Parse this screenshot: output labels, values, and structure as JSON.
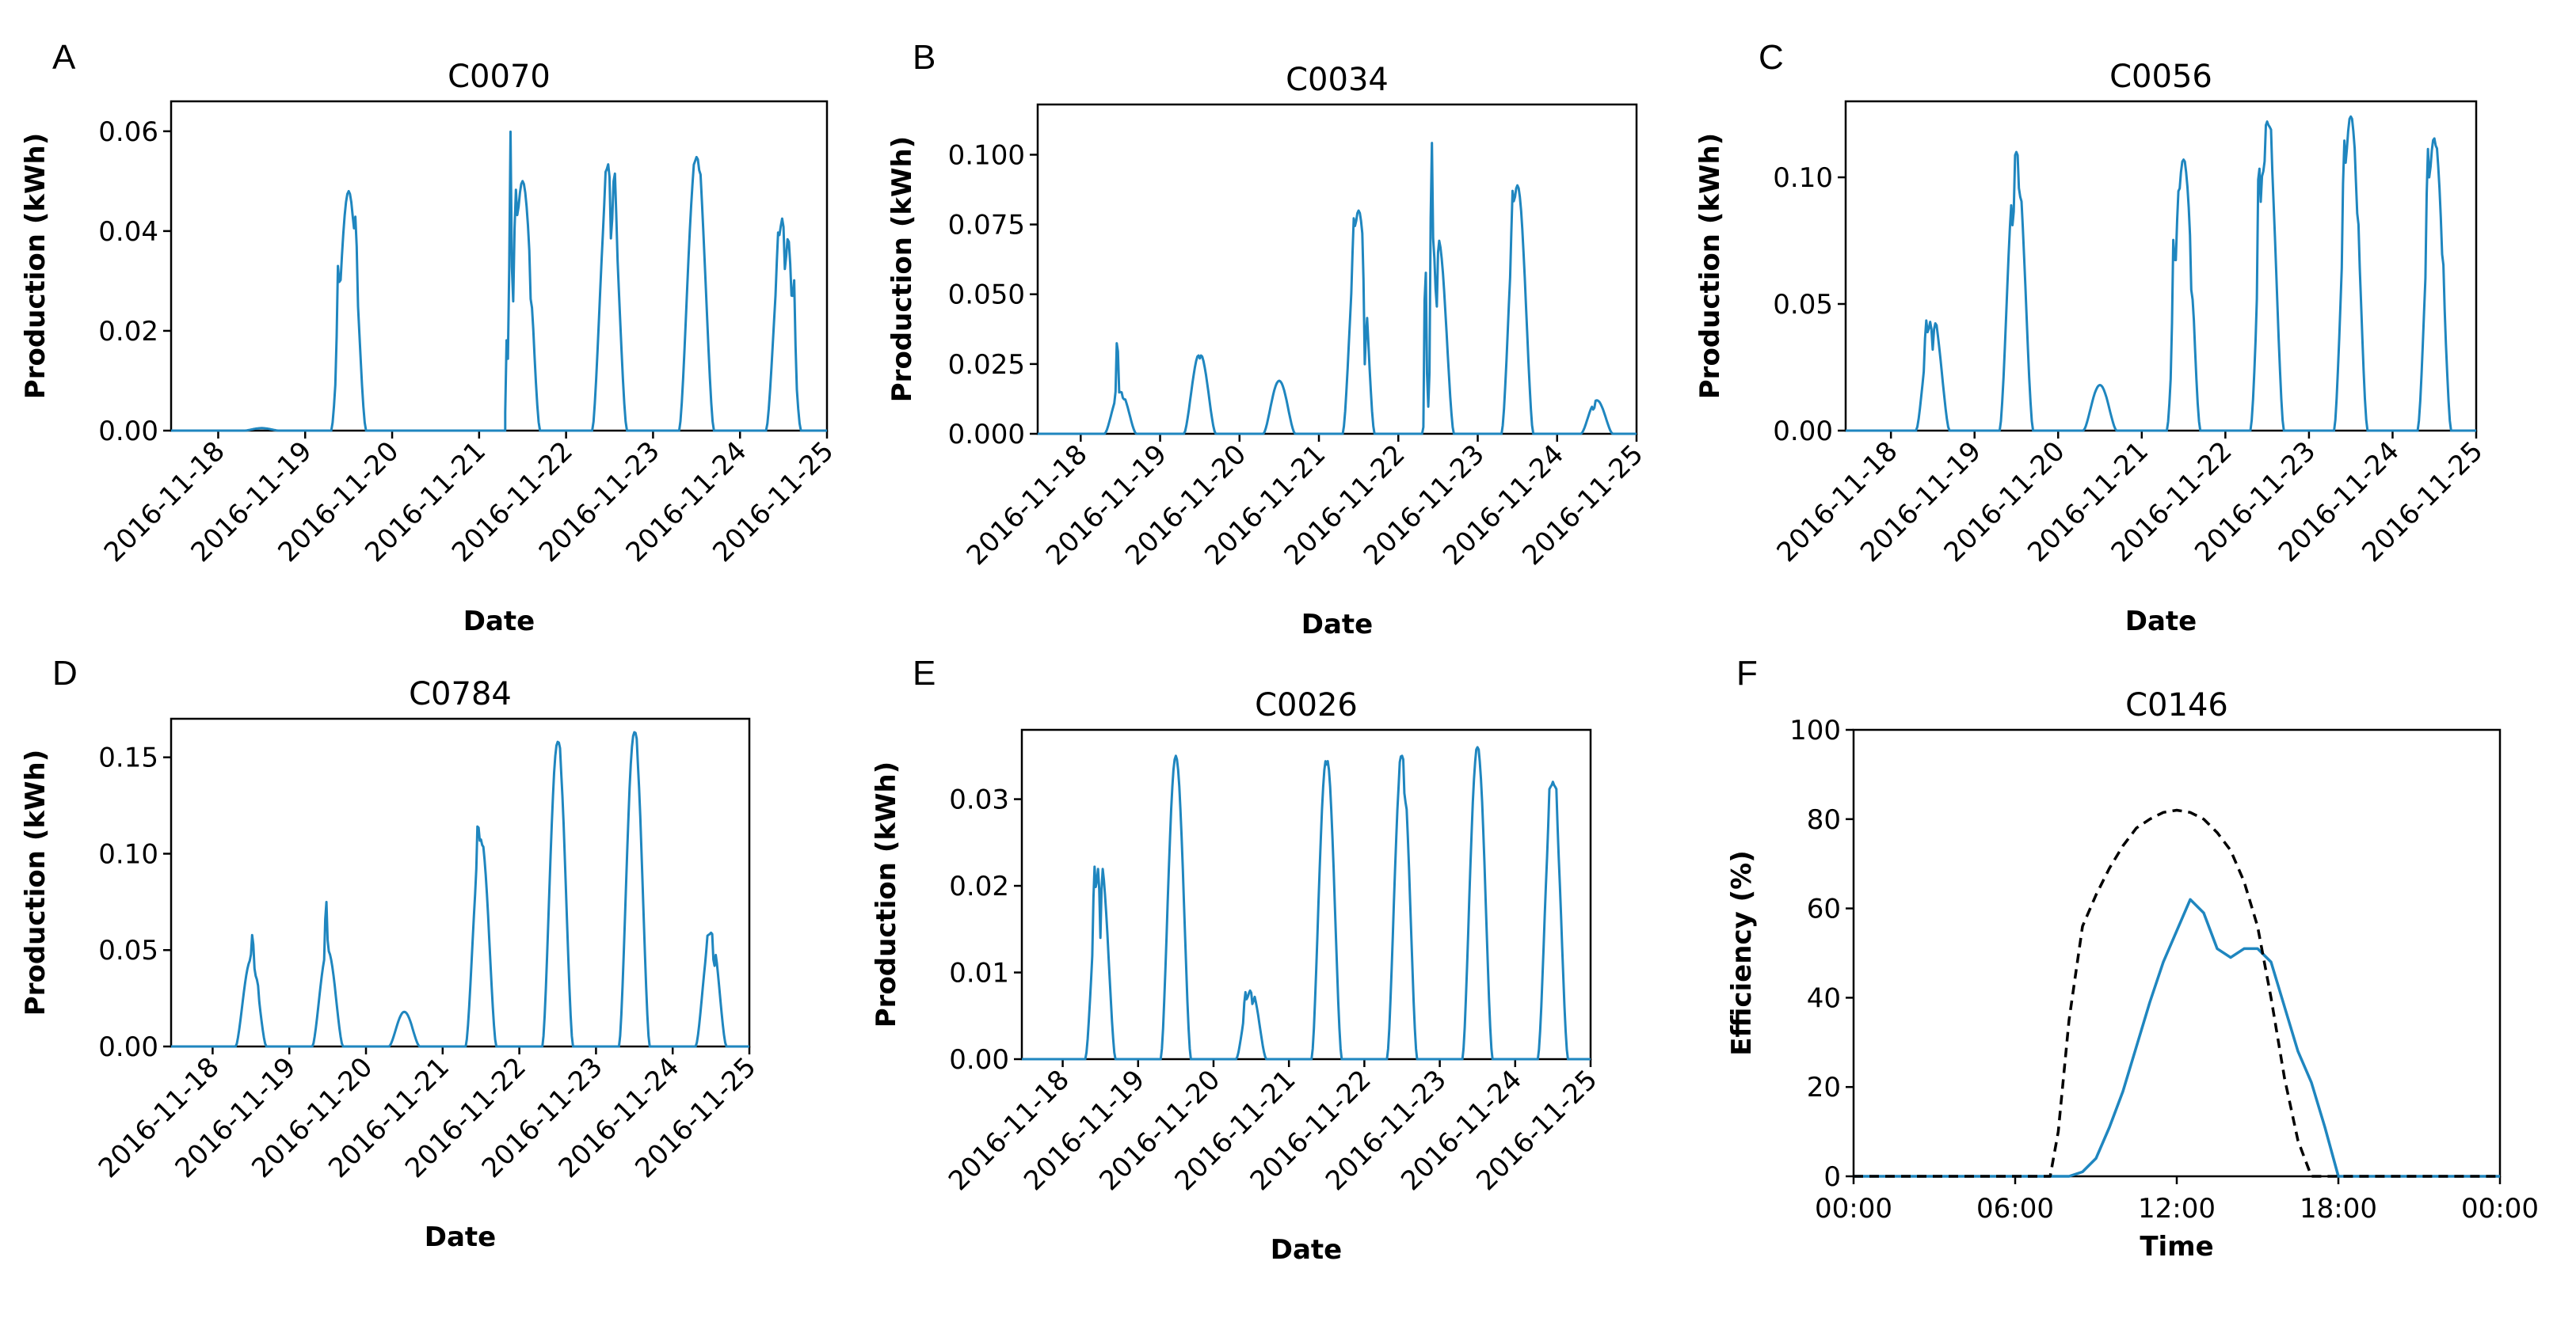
{
  "colors": {
    "line": "#1f86bf",
    "reference": "#000000"
  },
  "chart_data": [
    {
      "id": "A",
      "type": "line",
      "title": "C0070",
      "xlabel": "Date",
      "ylabel": "Production (kWh)",
      "xticks": [
        "2016-11-18",
        "2016-11-19",
        "2016-11-20",
        "2016-11-21",
        "2016-11-22",
        "2016-11-23",
        "2016-11-24",
        "2016-11-25"
      ],
      "xlim": [
        "2016-11-17T11:00",
        "2016-11-25T00:00"
      ],
      "yticks": [
        "0.00",
        "0.02",
        "0.04",
        "0.06"
      ],
      "ylim": [
        0,
        0.066
      ],
      "days": [
        {
          "date": "2016-11-18",
          "peak": 0.0005,
          "spikes": []
        },
        {
          "date": "2016-11-19",
          "peak": 0.048,
          "spikes": [
            [
              0.2,
              0.035
            ],
            [
              0.7,
              0.044
            ]
          ]
        },
        {
          "date": "2016-11-20",
          "peak": 0.0,
          "spikes": []
        },
        {
          "date": "2016-11-21",
          "peak": 0.05,
          "spikes": [
            [
              0.05,
              0.022
            ],
            [
              0.15,
              0.063
            ],
            [
              0.3,
              0.05
            ],
            [
              0.75,
              0.024
            ]
          ]
        },
        {
          "date": "2016-11-22",
          "peak": 0.054,
          "spikes": [
            [
              0.4,
              0.053
            ],
            [
              0.55,
              0.035
            ],
            [
              0.65,
              0.052
            ]
          ]
        },
        {
          "date": "2016-11-23",
          "peak": 0.055,
          "spikes": [
            [
              0.45,
              0.054
            ],
            [
              0.6,
              0.052
            ]
          ]
        },
        {
          "date": "2016-11-24",
          "peak": 0.043,
          "spikes": [
            [
              0.35,
              0.04
            ],
            [
              0.55,
              0.03
            ],
            [
              0.65,
              0.038
            ],
            [
              0.8,
              0.032
            ]
          ]
        }
      ]
    },
    {
      "id": "B",
      "type": "line",
      "title": "C0034",
      "xlabel": "Date",
      "ylabel": "Production (kWh)",
      "xticks": [
        "2016-11-18",
        "2016-11-19",
        "2016-11-20",
        "2016-11-21",
        "2016-11-22",
        "2016-11-23",
        "2016-11-24",
        "2016-11-25"
      ],
      "xlim": [
        "2016-11-17T11:00",
        "2016-11-25T00:00"
      ],
      "yticks": [
        "0.000",
        "0.025",
        "0.050",
        "0.075",
        "0.100"
      ],
      "ylim": [
        0,
        0.118
      ],
      "days": [
        {
          "date": "2016-11-18",
          "peak": 0.015,
          "spikes": [
            [
              0.4,
              0.039
            ],
            [
              0.6,
              0.012
            ]
          ]
        },
        {
          "date": "2016-11-19",
          "peak": 0.029,
          "spikes": [
            [
              0.5,
              0.027
            ]
          ]
        },
        {
          "date": "2016-11-20",
          "peak": 0.019,
          "spikes": []
        },
        {
          "date": "2016-11-21",
          "peak": 0.08,
          "spikes": [
            [
              0.35,
              0.078
            ],
            [
              0.7,
              0.02
            ]
          ]
        },
        {
          "date": "2016-11-22",
          "peak": 0.07,
          "spikes": [
            [
              0.1,
              0.073
            ],
            [
              0.2,
              0.007
            ],
            [
              0.3,
              0.112
            ],
            [
              0.45,
              0.04
            ]
          ]
        },
        {
          "date": "2016-11-23",
          "peak": 0.089,
          "spikes": [
            [
              0.35,
              0.088
            ]
          ]
        },
        {
          "date": "2016-11-24",
          "peak": 0.012,
          "spikes": [
            [
              0.4,
              0.008
            ]
          ]
        }
      ]
    },
    {
      "id": "C",
      "type": "line",
      "title": "C0056",
      "xlabel": "Date",
      "ylabel": "Production (kWh)",
      "xticks": [
        "2016-11-18",
        "2016-11-19",
        "2016-11-20",
        "2016-11-21",
        "2016-11-22",
        "2016-11-23",
        "2016-11-24",
        "2016-11-25"
      ],
      "xlim": [
        "2016-11-17T11:00",
        "2016-11-25T00:00"
      ],
      "yticks": [
        "0.00",
        "0.05",
        "0.10"
      ],
      "ylim": [
        0,
        0.13
      ],
      "days": [
        {
          "date": "2016-11-18",
          "peak": 0.045,
          "spikes": [
            [
              0.3,
              0.045
            ],
            [
              0.5,
              0.032
            ],
            [
              0.6,
              0.042
            ]
          ]
        },
        {
          "date": "2016-11-19",
          "peak": 0.11,
          "spikes": [
            [
              0.4,
              0.075
            ],
            [
              0.6,
              0.09
            ]
          ]
        },
        {
          "date": "2016-11-20",
          "peak": 0.018,
          "spikes": []
        },
        {
          "date": "2016-11-21",
          "peak": 0.107,
          "spikes": [
            [
              0.2,
              0.08
            ],
            [
              0.35,
              0.095
            ],
            [
              0.5,
              0.107
            ],
            [
              0.75,
              0.05
            ]
          ]
        },
        {
          "date": "2016-11-22",
          "peak": 0.122,
          "spikes": [
            [
              0.25,
              0.116
            ],
            [
              0.4,
              0.1
            ],
            [
              0.6,
              0.122
            ]
          ]
        },
        {
          "date": "2016-11-23",
          "peak": 0.124,
          "spikes": [
            [
              0.3,
              0.118
            ],
            [
              0.5,
              0.124
            ],
            [
              0.7,
              0.085
            ]
          ]
        },
        {
          "date": "2016-11-24",
          "peak": 0.116,
          "spikes": [
            [
              0.3,
              0.115
            ],
            [
              0.55,
              0.112
            ],
            [
              0.75,
              0.068
            ]
          ]
        }
      ]
    },
    {
      "id": "D",
      "type": "line",
      "title": "C0784",
      "xlabel": "Date",
      "ylabel": "Production (kWh)",
      "xticks": [
        "2016-11-18",
        "2016-11-19",
        "2016-11-20",
        "2016-11-21",
        "2016-11-22",
        "2016-11-23",
        "2016-11-24",
        "2016-11-25"
      ],
      "xlim": [
        "2016-11-17T11:00",
        "2016-11-25T00:00"
      ],
      "yticks": [
        "0.00",
        "0.05",
        "0.10",
        "0.15"
      ],
      "ylim": [
        0,
        0.17
      ],
      "days": [
        {
          "date": "2016-11-18",
          "peak": 0.045,
          "spikes": [
            [
              0.55,
              0.061
            ],
            [
              0.7,
              0.035
            ]
          ]
        },
        {
          "date": "2016-11-19",
          "peak": 0.05,
          "spikes": [
            [
              0.45,
              0.081
            ]
          ]
        },
        {
          "date": "2016-11-20",
          "peak": 0.018,
          "spikes": []
        },
        {
          "date": "2016-11-21",
          "peak": 0.108,
          "spikes": [
            [
              0.4,
              0.12
            ],
            [
              0.55,
              0.104
            ]
          ]
        },
        {
          "date": "2016-11-22",
          "peak": 0.158,
          "spikes": [
            [
              0.55,
              0.158
            ]
          ]
        },
        {
          "date": "2016-11-23",
          "peak": 0.163,
          "spikes": [
            [
              0.55,
              0.163
            ]
          ]
        },
        {
          "date": "2016-11-24",
          "peak": 0.059,
          "spikes": [
            [
              0.4,
              0.059
            ],
            [
              0.6,
              0.038
            ]
          ]
        }
      ]
    },
    {
      "id": "E",
      "type": "line",
      "title": "C0026",
      "xlabel": "Date",
      "ylabel": "Production (kWh)",
      "xticks": [
        "2016-11-18",
        "2016-11-19",
        "2016-11-20",
        "2016-11-21",
        "2016-11-22",
        "2016-11-23",
        "2016-11-24",
        "2016-11-25"
      ],
      "xlim": [
        "2016-11-17T11:00",
        "2016-11-25T00:00"
      ],
      "yticks": [
        "0.00",
        "0.01",
        "0.02",
        "0.03"
      ],
      "ylim": [
        0,
        0.038
      ],
      "days": [
        {
          "date": "2016-11-18",
          "peak": 0.023,
          "spikes": [
            [
              0.3,
              0.023
            ],
            [
              0.5,
              0.014
            ]
          ]
        },
        {
          "date": "2016-11-19",
          "peak": 0.035,
          "spikes": []
        },
        {
          "date": "2016-11-20",
          "peak": 0.008,
          "spikes": [
            [
              0.3,
              0.008
            ],
            [
              0.55,
              0.006
            ]
          ]
        },
        {
          "date": "2016-11-21",
          "peak": 0.035,
          "spikes": [
            [
              0.5,
              0.034
            ]
          ]
        },
        {
          "date": "2016-11-22",
          "peak": 0.035,
          "spikes": [
            [
              0.45,
              0.035
            ],
            [
              0.6,
              0.029
            ]
          ]
        },
        {
          "date": "2016-11-23",
          "peak": 0.036,
          "spikes": [
            [
              0.5,
              0.036
            ]
          ]
        },
        {
          "date": "2016-11-24",
          "peak": 0.032,
          "spikes": [
            [
              0.4,
              0.032
            ],
            [
              0.6,
              0.032
            ]
          ]
        }
      ]
    },
    {
      "id": "F",
      "type": "line",
      "title": "C0146",
      "xlabel": "Time",
      "ylabel": "Efficiency (%)",
      "xticks": [
        "00:00",
        "06:00",
        "12:00",
        "18:00",
        "00:00"
      ],
      "xlim": [
        0,
        24
      ],
      "yticks": [
        "0",
        "20",
        "40",
        "60",
        "80",
        "100"
      ],
      "ylim": [
        0,
        100
      ],
      "series": [
        {
          "style": "solid",
          "x": [
            0,
            8.0,
            8.5,
            9.0,
            9.5,
            10.0,
            10.5,
            11.0,
            11.5,
            12.0,
            12.5,
            13.0,
            13.5,
            14.0,
            14.5,
            15.0,
            15.5,
            16.0,
            16.5,
            17.0,
            17.5,
            18.0,
            24
          ],
          "y": [
            0,
            0,
            1,
            4,
            11,
            19,
            29,
            39,
            48,
            55,
            62,
            59,
            51,
            49,
            51,
            51,
            48,
            38,
            28,
            21,
            11,
            0,
            0
          ]
        },
        {
          "style": "dashed",
          "x": [
            0,
            7.3,
            7.6,
            8.0,
            8.5,
            9.0,
            9.5,
            10.0,
            10.5,
            11.0,
            11.5,
            12.0,
            12.5,
            13.0,
            13.5,
            14.0,
            14.5,
            15.0,
            15.5,
            16.0,
            16.5,
            17.0,
            24
          ],
          "y": [
            0,
            0,
            10,
            35,
            56,
            63,
            69,
            74,
            78,
            80,
            81.5,
            82,
            81.5,
            80,
            77,
            73,
            66,
            56,
            40,
            22,
            8,
            0,
            0
          ]
        }
      ]
    }
  ]
}
